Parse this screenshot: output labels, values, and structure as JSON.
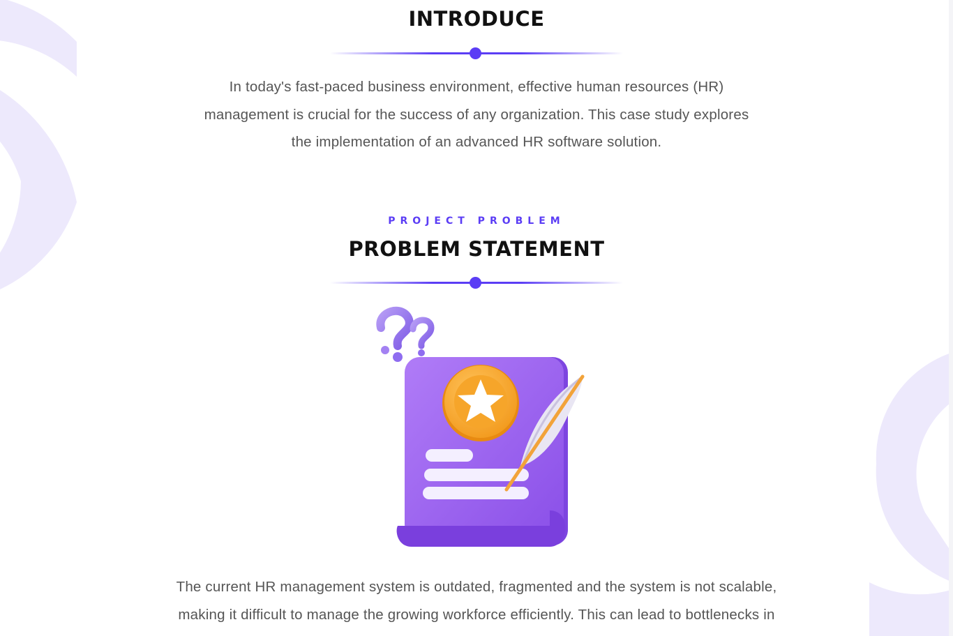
{
  "introduce": {
    "title": "INTRODUCE",
    "body_lines": [
      "In today's fast-paced business environment, effective human resources (HR)",
      "management is crucial for the success of any organization. This case study explores",
      "the implementation of an advanced HR software solution."
    ]
  },
  "problem": {
    "eyebrow": "PROJECT PROBLEM",
    "title": "PROBLEM STATEMENT",
    "illustration": "document-with-star-badge-and-quill-icon",
    "body_lines": [
      "The current HR management system is outdated, fragmented and the system is not scalable,",
      "making it difficult to manage the growing workforce efficiently. This can lead to bottlenecks in"
    ]
  },
  "colors": {
    "accent": "#5b3df5",
    "heading": "#111111",
    "body": "#555555",
    "decor": "#ede9fc"
  }
}
